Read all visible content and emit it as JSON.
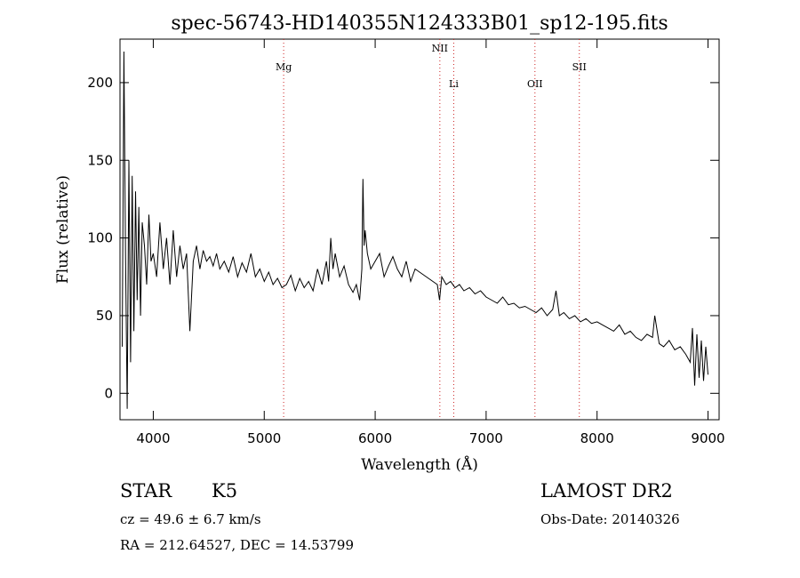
{
  "chart_data": {
    "type": "line",
    "title": "spec-56743-HD140355N124333B01_sp12-195.fits",
    "xlabel": "Wavelength (Å)",
    "ylabel": "Flux (relative)",
    "xlim": [
      3700,
      9100
    ],
    "ylim": [
      -17,
      228
    ],
    "xticks": [
      4000,
      5000,
      6000,
      7000,
      8000,
      9000
    ],
    "yticks": [
      0,
      50,
      100,
      150,
      200
    ],
    "grid": false,
    "series": [
      {
        "name": "",
        "x": [
          3720,
          3735,
          3750,
          3765,
          3780,
          3795,
          3810,
          3825,
          3840,
          3855,
          3870,
          3885,
          3900,
          3920,
          3940,
          3960,
          3980,
          4000,
          4030,
          4060,
          4090,
          4120,
          4150,
          4180,
          4210,
          4240,
          4270,
          4300,
          4330,
          4360,
          4390,
          4420,
          4450,
          4480,
          4510,
          4540,
          4570,
          4600,
          4640,
          4680,
          4720,
          4760,
          4800,
          4840,
          4880,
          4920,
          4960,
          5000,
          5040,
          5080,
          5120,
          5160,
          5200,
          5240,
          5280,
          5320,
          5360,
          5400,
          5440,
          5480,
          5520,
          5560,
          5580,
          5600,
          5620,
          5640,
          5680,
          5720,
          5760,
          5800,
          5830,
          5860,
          5880,
          5890,
          5900,
          5910,
          5930,
          5960,
          6000,
          6040,
          6080,
          6120,
          6160,
          6200,
          6240,
          6280,
          6320,
          6360,
          6400,
          6440,
          6480,
          6520,
          6560,
          6580,
          6600,
          6640,
          6680,
          6720,
          6760,
          6800,
          6850,
          6900,
          6950,
          7000,
          7050,
          7100,
          7150,
          7200,
          7250,
          7300,
          7350,
          7400,
          7450,
          7500,
          7550,
          7600,
          7630,
          7660,
          7700,
          7750,
          7800,
          7850,
          7900,
          7950,
          8000,
          8050,
          8100,
          8150,
          8200,
          8250,
          8300,
          8350,
          8400,
          8450,
          8500,
          8520,
          8560,
          8600,
          8650,
          8700,
          8750,
          8800,
          8840,
          8860,
          8880,
          8900,
          8920,
          8940,
          8960,
          8980,
          9000
        ],
        "y": [
          30,
          220,
          90,
          -10,
          150,
          20,
          140,
          40,
          130,
          60,
          120,
          50,
          110,
          95,
          70,
          115,
          85,
          90,
          75,
          110,
          80,
          100,
          70,
          105,
          75,
          95,
          80,
          90,
          40,
          85,
          95,
          80,
          92,
          85,
          88,
          82,
          90,
          80,
          85,
          78,
          88,
          75,
          84,
          78,
          90,
          75,
          80,
          72,
          78,
          70,
          74,
          68,
          70,
          76,
          66,
          74,
          68,
          72,
          66,
          80,
          70,
          85,
          72,
          100,
          80,
          90,
          75,
          82,
          70,
          65,
          70,
          60,
          80,
          138,
          95,
          105,
          90,
          80,
          85,
          90,
          75,
          82,
          88,
          80,
          75,
          85,
          72,
          80,
          78,
          76,
          74,
          72,
          70,
          60,
          75,
          70,
          72,
          68,
          70,
          66,
          68,
          64,
          66,
          62,
          60,
          58,
          62,
          57,
          58,
          55,
          56,
          54,
          52,
          55,
          50,
          54,
          66,
          50,
          52,
          48,
          50,
          46,
          48,
          45,
          46,
          44,
          42,
          40,
          44,
          38,
          40,
          36,
          34,
          38,
          36,
          50,
          32,
          30,
          34,
          28,
          30,
          25,
          20,
          42,
          5,
          38,
          10,
          34,
          8,
          30,
          12
        ]
      }
    ],
    "annotations": [
      {
        "label": "Mg",
        "x": 5175,
        "label_y": 208
      },
      {
        "label": "NII",
        "x": 6583,
        "label_y": 220
      },
      {
        "label": "Li",
        "x": 6708,
        "label_y": 197
      },
      {
        "label": "OII",
        "x": 7440,
        "label_y": 197
      },
      {
        "label": "SII",
        "x": 7840,
        "label_y": 208
      }
    ]
  },
  "info": {
    "class_label": "STAR",
    "subclass": "K5",
    "survey": "LAMOST DR2",
    "cz": "cz = 49.6 ± 6.7 km/s",
    "obs_date": "Obs-Date: 20140326",
    "coords": "RA = 212.64527, DEC =  14.53799"
  }
}
